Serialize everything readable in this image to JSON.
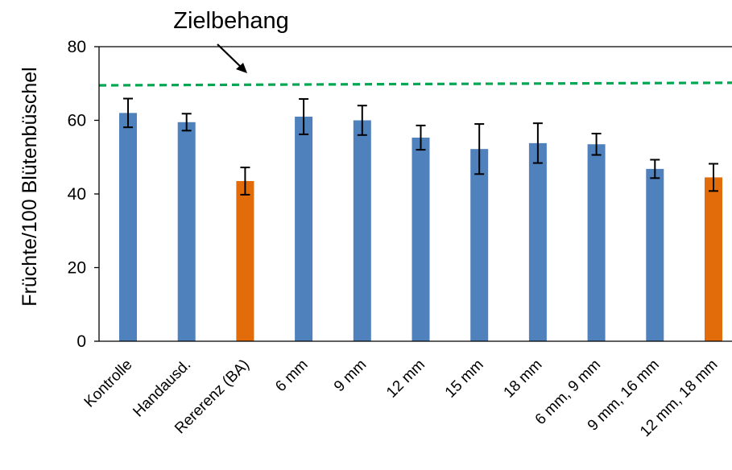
{
  "chart_data": {
    "type": "bar",
    "title": "",
    "xlabel": "",
    "ylabel": "Früchte/100 Blütenbüschel",
    "ylim": [
      0,
      80
    ],
    "yticks": [
      0,
      20,
      40,
      60,
      80
    ],
    "grid": false,
    "categories": [
      "Kontrolle",
      "Handausd.",
      "Rererenz (BA)",
      "6 mm",
      "9 mm",
      "12 mm",
      "15 mm",
      "18 mm",
      "6 mm, 9 mm",
      "9 mm, 16 mm",
      "12 mm, 18 mm"
    ],
    "values": [
      62,
      59.5,
      43.5,
      61,
      60,
      55.3,
      52.2,
      53.8,
      53.5,
      46.8,
      44.5
    ],
    "errors": [
      3.9,
      2.3,
      3.7,
      4.8,
      4,
      3.3,
      6.8,
      5.4,
      2.9,
      2.5,
      3.7
    ],
    "bar_colors": [
      "#4f81bd",
      "#4f81bd",
      "#e36c0a",
      "#4f81bd",
      "#4f81bd",
      "#4f81bd",
      "#4f81bd",
      "#4f81bd",
      "#4f81bd",
      "#4f81bd",
      "#e36c0a"
    ],
    "target_line": {
      "label": "Zielbehang",
      "y_start": 69.5,
      "y_end": 70.2,
      "color": "#00a651"
    }
  }
}
